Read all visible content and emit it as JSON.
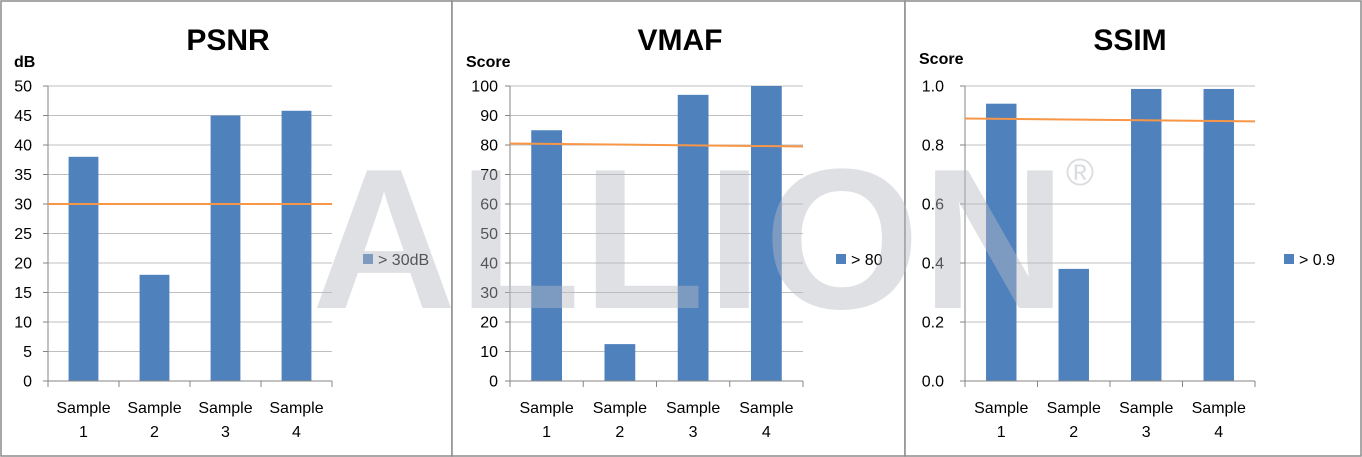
{
  "watermark": {
    "text": "ALLION",
    "registered": "®"
  },
  "chart_data": [
    {
      "type": "bar",
      "title": "PSNR",
      "ylabel": "dB",
      "xlabel": "",
      "categories": [
        [
          "Sample",
          "1"
        ],
        [
          "Sample",
          "2"
        ],
        [
          "Sample",
          "3"
        ],
        [
          "Sample",
          "4"
        ]
      ],
      "series": [
        {
          "values": [
            38,
            18,
            45,
            45.8
          ],
          "color": "#4f81bd"
        }
      ],
      "threshold": {
        "value": 30,
        "value_end": 30,
        "color": "#f79646"
      },
      "legend": {
        "label": "> 30dB",
        "position": "right"
      },
      "ylim": [
        0,
        50
      ],
      "yticks": [
        "0",
        "5",
        "10",
        "15",
        "20",
        "25",
        "30",
        "35",
        "40",
        "45",
        "50"
      ],
      "grid": true
    },
    {
      "type": "bar",
      "title": "VMAF",
      "ylabel": "Score",
      "xlabel": "",
      "categories": [
        [
          "Sample",
          "1"
        ],
        [
          "Sample",
          "2"
        ],
        [
          "Sample",
          "3"
        ],
        [
          "Sample",
          "4"
        ]
      ],
      "series": [
        {
          "values": [
            85,
            12.5,
            97,
            100
          ],
          "color": "#4f81bd"
        }
      ],
      "threshold": {
        "value": 80.5,
        "value_end": 79.5,
        "color": "#f79646"
      },
      "legend": {
        "label": "> 80",
        "position": "right"
      },
      "ylim": [
        0,
        100
      ],
      "yticks": [
        "0",
        "10",
        "20",
        "30",
        "40",
        "50",
        "60",
        "70",
        "80",
        "90",
        "100"
      ],
      "grid": true
    },
    {
      "type": "bar",
      "title": "SSIM",
      "ylabel": "Score",
      "xlabel": "",
      "categories": [
        [
          "Sample",
          "1"
        ],
        [
          "Sample",
          "2"
        ],
        [
          "Sample",
          "3"
        ],
        [
          "Sample",
          "4"
        ]
      ],
      "series": [
        {
          "values": [
            0.94,
            0.38,
            0.99,
            0.99
          ],
          "color": "#4f81bd"
        }
      ],
      "threshold": {
        "value": 0.89,
        "value_end": 0.88,
        "color": "#f79646"
      },
      "legend": {
        "label": "> 0.9",
        "position": "right"
      },
      "ylim": [
        0,
        1
      ],
      "yticks": [
        "0.0",
        "0.2",
        "0.4",
        "0.6",
        "0.8",
        "1.0"
      ],
      "grid": true
    }
  ]
}
